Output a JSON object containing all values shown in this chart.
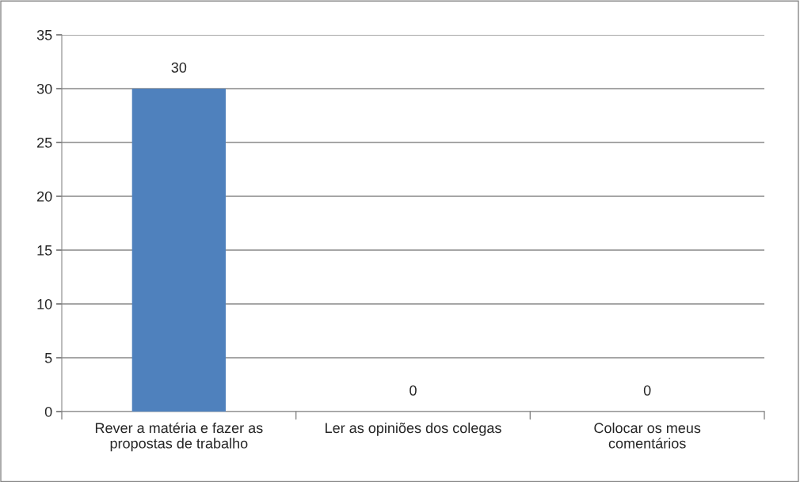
{
  "chart_data": {
    "type": "bar",
    "categories": [
      "Rever a matéria e fazer as\npropostas de trabalho",
      "Ler as opiniões dos colegas",
      "Colocar os meus\ncomentários"
    ],
    "values": [
      30,
      0,
      0
    ],
    "color": "#4f81bd",
    "ylim": [
      0,
      35
    ],
    "yticks": [
      0,
      5,
      10,
      15,
      20,
      25,
      30,
      35
    ],
    "grid": "y",
    "data_labels": true,
    "legend": false
  }
}
